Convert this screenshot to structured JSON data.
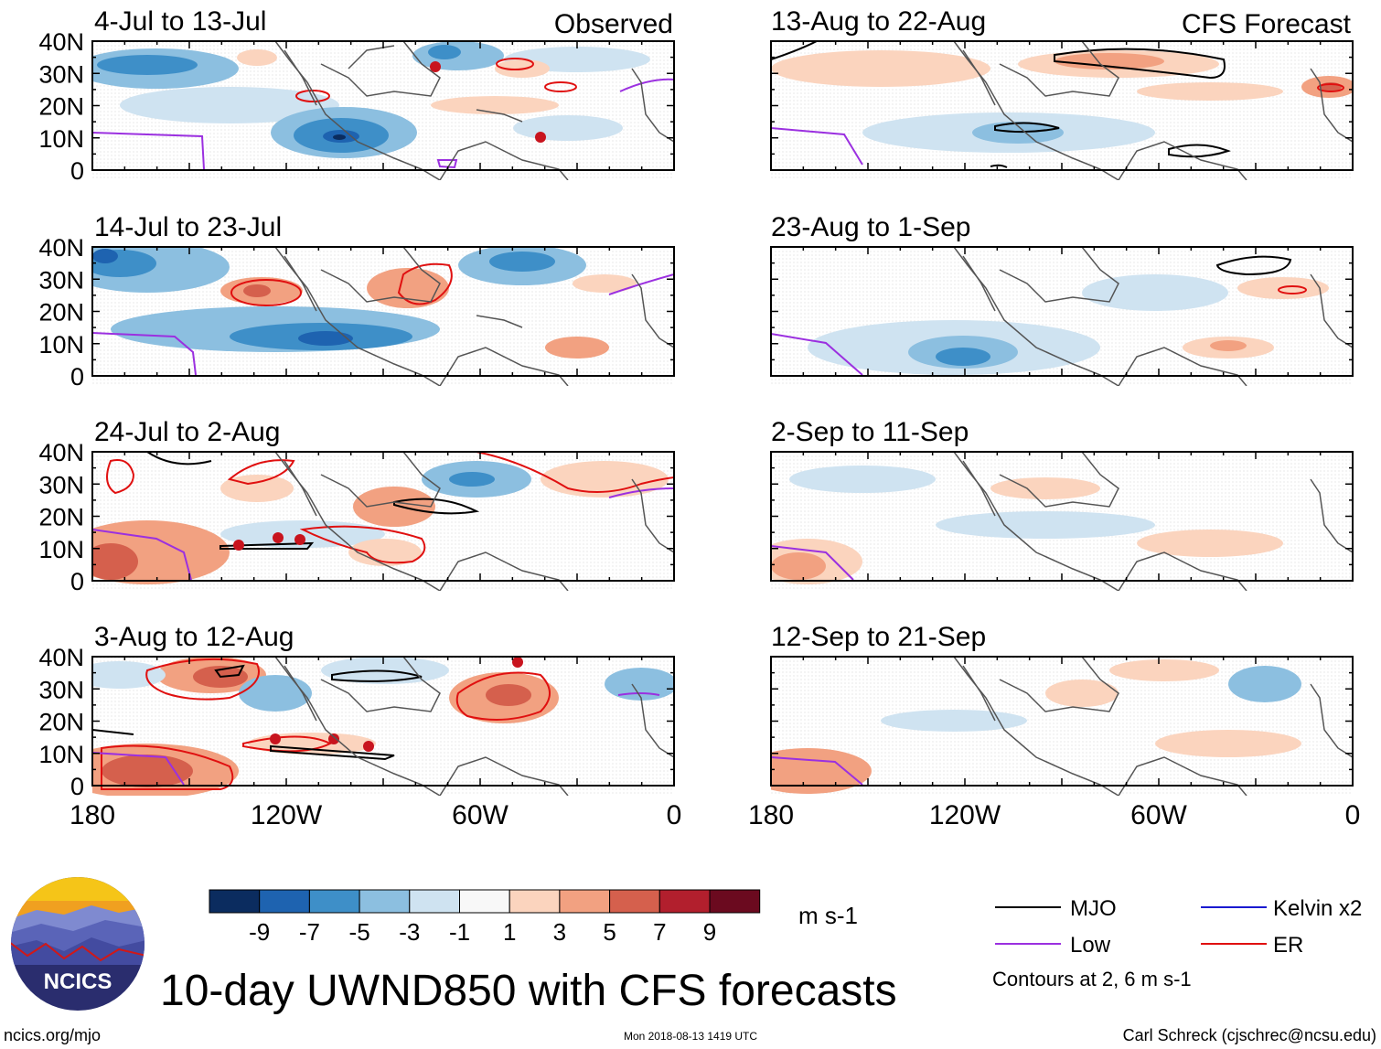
{
  "figure": {
    "title": "10-day UWND850 with CFS forecasts",
    "left_header": "Observed",
    "right_header": "CFS Forecast",
    "logo_text": "NCICS",
    "footer_left": "ncics.org/mjo",
    "footer_center": "Mon 2018-08-13 1419 UTC",
    "footer_right": "Carl Schreck (cjschrec@ncsu.edu)",
    "units": "m s-1",
    "contour_note": "Contours at 2, 6 m s-1"
  },
  "chart_data": {
    "type": "heatmap",
    "variable": "850-hPa zonal wind anomaly",
    "xlabel": "",
    "ylabel": "",
    "xlim": [
      180,
      0
    ],
    "ylim": [
      0,
      40
    ],
    "x_ticks": [
      "180",
      "120W",
      "60W",
      "0"
    ],
    "y_ticks": [
      "40N",
      "30N",
      "20N",
      "10N",
      "0"
    ],
    "panels": [
      {
        "column": "Observed",
        "period": "4-Jul to 13-Jul"
      },
      {
        "column": "Observed",
        "period": "14-Jul to 23-Jul"
      },
      {
        "column": "Observed",
        "period": "24-Jul to 2-Aug"
      },
      {
        "column": "Observed",
        "period": "3-Aug to 12-Aug"
      },
      {
        "column": "CFS Forecast",
        "period": "13-Aug to 22-Aug"
      },
      {
        "column": "CFS Forecast",
        "period": "23-Aug to 1-Sep"
      },
      {
        "column": "CFS Forecast",
        "period": "2-Sep to 11-Sep"
      },
      {
        "column": "CFS Forecast",
        "period": "12-Sep to 21-Sep"
      }
    ],
    "colorbar": {
      "labels": [
        "-9",
        "-7",
        "-5",
        "-3",
        "-1",
        "1",
        "3",
        "5",
        "7",
        "9"
      ],
      "colors": [
        "#0b2c5f",
        "#1e63b0",
        "#3e8fc8",
        "#8cbfe0",
        "#cfe3f1",
        "#f8f8f8",
        "#fbd4be",
        "#f2a181",
        "#d5604d",
        "#b21f2d",
        "#6b0a1f"
      ]
    },
    "legend": [
      {
        "label": "MJO",
        "color": "#000000"
      },
      {
        "label": "Kelvin x2",
        "color": "#1a1ad0"
      },
      {
        "label": "Low",
        "color": "#9b30e0"
      },
      {
        "label": "ER",
        "color": "#e01010"
      }
    ]
  }
}
